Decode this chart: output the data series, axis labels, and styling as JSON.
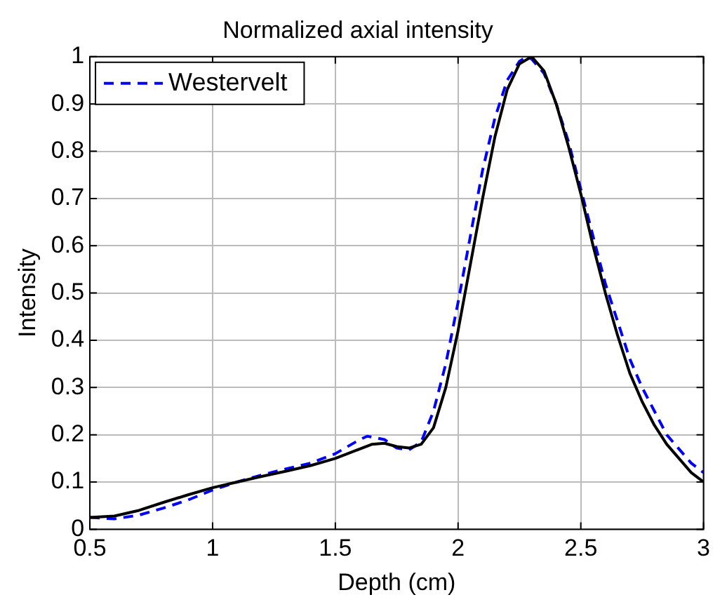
{
  "chart_data": {
    "type": "line",
    "title": "Normalized axial intensity",
    "xlabel": "Depth (cm)",
    "ylabel": "Intensity",
    "xlim": [
      0.5,
      3
    ],
    "xticks": [
      0.5,
      1,
      1.5,
      2,
      2.5,
      3
    ],
    "ylim": [
      0,
      1
    ],
    "yticks": [
      0,
      0.1,
      0.2,
      0.3,
      0.4,
      0.5,
      0.6,
      0.7,
      0.8,
      0.9,
      1
    ],
    "grid": true,
    "legend": "top left",
    "marker": "none",
    "series": [
      {
        "color": "#000000",
        "line_style": "solid",
        "x": [
          0.5,
          0.6,
          0.7,
          0.8,
          0.9,
          1.0,
          1.1,
          1.2,
          1.3,
          1.4,
          1.5,
          1.6,
          1.65,
          1.7,
          1.75,
          1.8,
          1.85,
          1.9,
          1.95,
          2.0,
          2.05,
          2.1,
          2.15,
          2.2,
          2.25,
          2.3,
          2.35,
          2.4,
          2.45,
          2.5,
          2.55,
          2.6,
          2.65,
          2.7,
          2.75,
          2.8,
          2.85,
          2.9,
          2.95,
          3.0
        ],
        "values": [
          0.025,
          0.028,
          0.04,
          0.057,
          0.073,
          0.088,
          0.1,
          0.112,
          0.123,
          0.135,
          0.15,
          0.17,
          0.18,
          0.182,
          0.175,
          0.172,
          0.18,
          0.215,
          0.3,
          0.42,
          0.56,
          0.7,
          0.83,
          0.93,
          0.985,
          1.0,
          0.97,
          0.9,
          0.81,
          0.71,
          0.6,
          0.5,
          0.41,
          0.33,
          0.27,
          0.22,
          0.18,
          0.15,
          0.12,
          0.1
        ]
      },
      {
        "name": "Westervelt",
        "color": "#0000ff",
        "line_style": "dashed",
        "x": [
          0.5,
          0.6,
          0.7,
          0.8,
          0.9,
          1.0,
          1.1,
          1.2,
          1.3,
          1.4,
          1.5,
          1.6,
          1.63,
          1.7,
          1.75,
          1.8,
          1.85,
          1.9,
          1.95,
          2.0,
          2.05,
          2.1,
          2.15,
          2.2,
          2.25,
          2.28,
          2.3,
          2.35,
          2.4,
          2.45,
          2.5,
          2.55,
          2.6,
          2.65,
          2.7,
          2.75,
          2.8,
          2.85,
          2.9,
          2.95,
          3.0
        ],
        "values": [
          0.025,
          0.022,
          0.03,
          0.045,
          0.062,
          0.083,
          0.1,
          0.115,
          0.128,
          0.14,
          0.16,
          0.19,
          0.197,
          0.19,
          0.172,
          0.168,
          0.185,
          0.25,
          0.35,
          0.48,
          0.62,
          0.76,
          0.87,
          0.95,
          0.99,
          1.0,
          0.995,
          0.965,
          0.9,
          0.82,
          0.72,
          0.62,
          0.52,
          0.44,
          0.36,
          0.3,
          0.25,
          0.2,
          0.17,
          0.14,
          0.12
        ]
      }
    ]
  }
}
